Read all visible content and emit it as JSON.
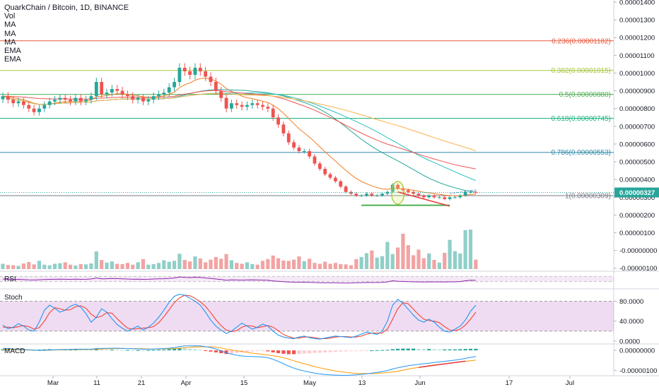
{
  "chart_data": {
    "type": "candlestick",
    "title": "QuarkChain / Bitcoin, 1D, BINANCE",
    "indicators": [
      "Vol",
      "MA",
      "MA",
      "MA",
      "EMA",
      "EMA"
    ],
    "x_ticks": [
      "Mar",
      "11",
      "21",
      "Apr",
      "15",
      "May",
      "13",
      "Jun",
      "17",
      "Jul"
    ],
    "price_ticks": [
      "0.00001400",
      "0.00001300",
      "0.00001200",
      "0.00001100",
      "0.00001000",
      "0.00000900",
      "0.00000800",
      "0.00000700",
      "0.00000600",
      "0.00000500",
      "0.00000400",
      "0.00000300",
      "0.00000200",
      "0.00000100",
      "-0.00000000",
      "-0.00000100"
    ],
    "price_ylim": [
      -1.05e-06,
      1.4e-05
    ],
    "last_price": "0.00000327",
    "fib_levels": [
      {
        "label": "0.236(0.00001182)",
        "value": 1.182e-05,
        "color": "#e8593f"
      },
      {
        "label": "0.382(0.00001015)",
        "value": 1.015e-05,
        "color": "#a5c73a"
      },
      {
        "label": "0.5(0.00000880)",
        "value": 8.8e-06,
        "color": "#4caf50"
      },
      {
        "label": "0.618(0.00000745)",
        "value": 7.45e-06,
        "color": "#1fb37f"
      },
      {
        "label": "0.786(0.00000553)",
        "value": 5.53e-06,
        "color": "#2f8cab"
      },
      {
        "label": "1(0.00000309)",
        "value": 3.09e-06,
        "color": "#787b86"
      }
    ],
    "candles_close": [
      8.7e-06,
      8.5e-06,
      8.3e-06,
      8.4e-06,
      8.2e-06,
      8e-06,
      7.8e-06,
      8e-06,
      8.2e-06,
      8.4e-06,
      8.5e-06,
      8.6e-06,
      8.5e-06,
      8.4e-06,
      8.6e-06,
      8.4e-06,
      8.5e-06,
      8.7e-06,
      9.5e-06,
      8.8e-06,
      8.9e-06,
      9.1e-06,
      9e-06,
      8.8e-06,
      8.7e-06,
      8.5e-06,
      8.6e-06,
      8.4e-06,
      8.5e-06,
      8.7e-06,
      8.8e-06,
      8.9e-06,
      9.2e-06,
      9.5e-06,
      1.03e-05,
      1.01e-05,
      9.9e-06,
      1.03e-05,
      1.01e-05,
      9.8e-06,
      9.5e-06,
      9e-06,
      8.6e-06,
      8e-06,
      8.3e-06,
      8.2e-06,
      8.1e-06,
      8.2e-06,
      8.3e-06,
      8.2e-06,
      8.1e-06,
      8e-06,
      7.5e-06,
      7.1e-06,
      6.6e-06,
      6.1e-06,
      5.8e-06,
      5.6e-06,
      5.6e-06,
      5.3e-06,
      4.9e-06,
      4.6e-06,
      4.3e-06,
      4.1e-06,
      3.9e-06,
      3.6e-06,
      3.3e-06,
      3.2e-06,
      3.1e-06,
      3.1e-06,
      3.2e-06,
      3.1e-06,
      3.1e-06,
      3.2e-06,
      3.3e-06,
      3.7e-06,
      3.5e-06,
      3.4e-06,
      3.3e-06,
      3.2e-06,
      3.1e-06,
      3e-06,
      3.1e-06,
      3e-06,
      3e-06,
      2.9e-06,
      3e-06,
      3e-06,
      3.1e-06,
      3.3e-06,
      3.3e-06,
      3.27e-06
    ],
    "volume": [
      1.8,
      1.4,
      1.3,
      1.1,
      1.9,
      2.4,
      1.6,
      2.8,
      1.5,
      1.3,
      1.8,
      2,
      2.3,
      1.5,
      1.2,
      1.7,
      1.6,
      1.9,
      6,
      3.1,
      2.2,
      2.6,
      1.8,
      1.7,
      2.1,
      1.5,
      2.3,
      3.4,
      1.5,
      1.7,
      2.1,
      3,
      2.5,
      2.8,
      5.2,
      3.1,
      2.6,
      4.3,
      3.6,
      2.3,
      3.2,
      4.1,
      3.5,
      5.1,
      3,
      2.1,
      1.8,
      2.3,
      1.7,
      1.5,
      2.8,
      3.4,
      4.6,
      3.7,
      2.9,
      2.8,
      3.2,
      4.3,
      2.7,
      3.5,
      2.1,
      1.8,
      2.5,
      1.8,
      2.1,
      1.7,
      1.6,
      1.3,
      3.4,
      4.1,
      5.4,
      6.3,
      3.9,
      4.4,
      9.2,
      5.1,
      7.3,
      12,
      8.1,
      4.7,
      6.6,
      3.7,
      5.3,
      3.1,
      2.2,
      5.5,
      9.9,
      6.1,
      5.3,
      13.2,
      13.4,
      3.2
    ],
    "rsi": [
      50,
      48,
      46,
      47,
      45,
      43,
      42,
      44,
      46,
      47,
      48,
      49,
      48,
      47,
      49,
      47,
      48,
      50,
      58,
      51,
      52,
      54,
      53,
      51,
      50,
      48,
      49,
      47,
      48,
      50,
      51,
      52,
      55,
      58,
      66,
      63,
      61,
      64,
      62,
      58,
      55,
      50,
      46,
      40,
      43,
      42,
      41,
      42,
      43,
      42,
      41,
      40,
      35,
      32,
      29,
      26,
      25,
      24,
      25,
      24,
      22,
      21,
      20,
      20,
      20,
      19,
      18,
      19,
      20,
      21,
      23,
      22,
      22,
      24,
      27,
      36,
      32,
      31,
      29,
      28,
      27,
      26,
      28,
      27,
      27,
      26,
      28,
      28,
      30,
      36,
      40,
      39
    ],
    "rsi_ylim": [
      0,
      100
    ],
    "stoch_ticks": [
      "80.0000",
      "40.0000",
      "0.0000"
    ],
    "stoch_ylim": [
      -3,
      102
    ],
    "stoch_k": [
      32,
      25,
      28,
      35,
      30,
      22,
      20,
      38,
      62,
      72,
      66,
      58,
      62,
      70,
      74,
      68,
      55,
      38,
      48,
      65,
      58,
      45,
      33,
      26,
      20,
      25,
      30,
      22,
      28,
      36,
      48,
      62,
      78,
      90,
      94,
      92,
      86,
      80,
      72,
      58,
      42,
      30,
      22,
      15,
      20,
      28,
      36,
      30,
      24,
      28,
      34,
      30,
      20,
      12,
      8,
      6,
      5,
      8,
      10,
      7,
      5,
      4,
      6,
      8,
      10,
      9,
      8,
      7,
      10,
      14,
      18,
      16,
      13,
      20,
      40,
      72,
      84,
      76,
      64,
      52,
      42,
      38,
      44,
      38,
      28,
      20,
      18,
      24,
      30,
      42,
      60,
      72
    ],
    "stoch_d": [
      28,
      28,
      27,
      29,
      31,
      29,
      24,
      27,
      40,
      57,
      67,
      65,
      62,
      63,
      69,
      71,
      66,
      54,
      47,
      50,
      57,
      56,
      45,
      35,
      26,
      24,
      25,
      26,
      27,
      29,
      37,
      49,
      63,
      77,
      87,
      92,
      91,
      86,
      79,
      70,
      57,
      43,
      31,
      22,
      19,
      21,
      28,
      31,
      30,
      27,
      29,
      31,
      28,
      21,
      13,
      9,
      6,
      6,
      8,
      8,
      7,
      5,
      5,
      6,
      8,
      9,
      9,
      8,
      8,
      10,
      14,
      16,
      16,
      16,
      24,
      44,
      65,
      77,
      75,
      64,
      53,
      44,
      41,
      40,
      37,
      29,
      22,
      21,
      24,
      32,
      44,
      58
    ],
    "macd_ticks": [
      "0.00000000",
      "-0.00000100"
    ],
    "macd_ylim": [
      -1.2e-06,
      2.5e-07
    ],
    "macd_hist": [
      5e-08,
      5e-08,
      4e-08,
      3e-08,
      4e-08,
      3e-08,
      3e-08,
      4e-08,
      5e-08,
      6e-08,
      5e-08,
      4e-08,
      4e-08,
      5e-08,
      5e-08,
      4e-08,
      3e-08,
      2e-08,
      5e-08,
      4e-08,
      3e-08,
      4e-08,
      3e-08,
      2e-08,
      2e-08,
      1e-08,
      1e-08,
      0,
      1e-08,
      2e-08,
      3e-08,
      4e-08,
      6e-08,
      8e-08,
      1.1e-07,
      1e-07,
      7e-08,
      6e-08,
      3e-08,
      -2e-08,
      -6e-08,
      -1e-07,
      -1.4e-07,
      -1.8e-07,
      -1.6e-07,
      -1.3e-07,
      -1e-07,
      -7e-08,
      -5e-08,
      -3e-08,
      -2e-08,
      -5e-08,
      -1e-07,
      -1.4e-07,
      -1.7e-07,
      -1.9e-07,
      -1.9e-07,
      -1.8e-07,
      -1.6e-07,
      -1.5e-07,
      -1.3e-07,
      -1.2e-07,
      -1e-07,
      -9e-08,
      -7e-08,
      -6e-08,
      -5e-08,
      -4e-08,
      -3e-08,
      -2e-08,
      -1e-08,
      0,
      1e-08,
      2e-08,
      3e-08,
      6e-08,
      8e-08,
      9e-08,
      9e-08,
      9e-08,
      8e-08,
      7e-08,
      7e-08,
      6e-08,
      5e-08,
      5e-08,
      5e-08,
      5e-08,
      6e-08,
      7e-08,
      8e-08,
      8e-08
    ],
    "macd_line": [
      1e-07,
      9e-08,
      7e-08,
      6e-08,
      5e-08,
      3e-08,
      1e-08,
      0,
      1e-08,
      2e-08,
      3e-08,
      4e-08,
      4e-08,
      5e-08,
      6e-08,
      6e-08,
      6e-08,
      6e-08,
      9e-08,
      1e-07,
      1e-07,
      1.1e-07,
      1.1e-07,
      1e-07,
      9e-08,
      8e-08,
      7e-08,
      6e-08,
      6e-08,
      7e-08,
      8e-08,
      9e-08,
      1.1e-07,
      1.4e-07,
      1.9e-07,
      2.2e-07,
      2.2e-07,
      2.3e-07,
      2.2e-07,
      1.9e-07,
      1.4e-07,
      7e-08,
      -2e-08,
      -1.3e-07,
      -1.9e-07,
      -2.4e-07,
      -2.8e-07,
      -3e-07,
      -3.1e-07,
      -3.2e-07,
      -3.3e-07,
      -3.7e-07,
      -4.5e-07,
      -5.5e-07,
      -6.7e-07,
      -7.9e-07,
      -8.9e-07,
      -9.7e-07,
      -1.03e-06,
      -1.09e-06,
      -1.14e-06,
      -1.18e-06,
      -1.21e-06,
      -1.23e-06,
      -1.24e-06,
      -1.25e-06,
      -1.25e-06,
      -1.24e-06,
      -1.22e-06,
      -1.2e-06,
      -1.17e-06,
      -1.14e-06,
      -1.1e-06,
      -1.06e-06,
      -1.01e-06,
      -9.3e-07,
      -8.7e-07,
      -8.2e-07,
      -7.7e-07,
      -7.3e-07,
      -7e-07,
      -6.7e-07,
      -6.4e-07,
      -6.1e-07,
      -5.8e-07,
      -5.5e-07,
      -5.2e-07,
      -4.9e-07,
      -4.5e-07,
      -4e-07,
      -3.5e-07,
      -3.1e-07
    ],
    "macd_signal": [
      5e-08,
      5e-08,
      4e-08,
      4e-08,
      3e-08,
      2e-08,
      1e-08,
      0,
      0,
      1e-08,
      2e-08,
      3e-08,
      3e-08,
      4e-08,
      4e-08,
      4e-08,
      5e-08,
      5e-08,
      6e-08,
      7e-08,
      8e-08,
      9e-08,
      9e-08,
      9e-08,
      9e-08,
      9e-08,
      8e-08,
      8e-08,
      7e-08,
      7e-08,
      7e-08,
      8e-08,
      8e-08,
      9e-08,
      1.1e-07,
      1.3e-07,
      1.5e-07,
      1.7e-07,
      1.8e-07,
      1.8e-07,
      1.8e-07,
      1.6e-07,
      1.2e-07,
      6e-08,
      2e-08,
      -2e-08,
      -6e-08,
      -1e-07,
      -1.4e-07,
      -1.7e-07,
      -2e-07,
      -2.3e-07,
      -2.7e-07,
      -3.1e-07,
      -3.7e-07,
      -4.4e-07,
      -5.2e-07,
      -6e-07,
      -6.7e-07,
      -7.4e-07,
      -8.1e-07,
      -8.7e-07,
      -9.3e-07,
      -9.8e-07,
      -1.03e-06,
      -1.07e-06,
      -1.1e-06,
      -1.13e-06,
      -1.15e-06,
      -1.16e-06,
      -1.16e-06,
      -1.16e-06,
      -1.15e-06,
      -1.13e-06,
      -1.11e-06,
      -1.08e-06,
      -1.04e-06,
      -9.9e-07,
      -9.4e-07,
      -8.9e-07,
      -8.5e-07,
      -8.1e-07,
      -7.7e-07,
      -7.3e-07,
      -7e-07,
      -6.7e-07,
      -6.4e-07,
      -6.1e-07,
      -5.8e-07,
      -5.5e-07,
      -5.2e-07,
      -4.9e-07
    ]
  }
}
